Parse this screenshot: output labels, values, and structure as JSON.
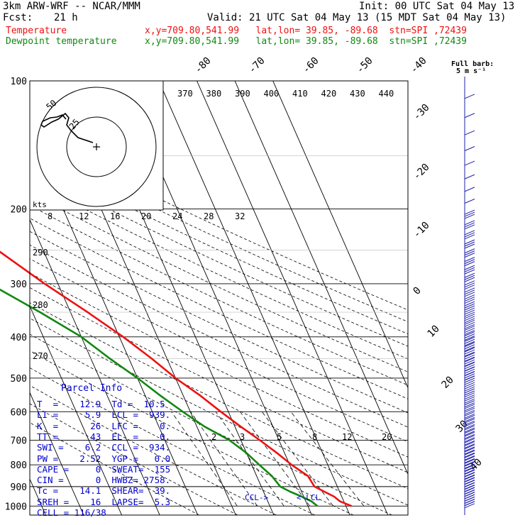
{
  "header": {
    "model": "3km ARW-WRF -- NCAR/MMM",
    "init": "Init: 00 UTC Sat 04 May 13",
    "fcst_label": "Fcst:",
    "fcst_value": "21 h",
    "valid": "Valid: 21 UTC Sat 04 May 13 (15 MDT Sat 04 May 13)",
    "temp_label": "Temperature",
    "temp_info": "x,y=709.80,541.99   lat,lon= 39.85, -89.68  stn=SPI ,72439",
    "dew_label": "Dewpoint temperature",
    "dew_info": "x,y=709.80,541.99   lat,lon= 39.85, -89.68  stn=SPI ,72439"
  },
  "colors": {
    "temperature": "#ee1111",
    "dewpoint": "#118811",
    "text_blue": "#0000cc",
    "wind": "#2222aa"
  },
  "chart_data": {
    "type": "line",
    "title": "",
    "ylabel": "Pressure (hPa)",
    "pressure_ticks": [
      {
        "p": 100,
        "label": "100"
      },
      {
        "p": 200,
        "label": "200"
      },
      {
        "p": 300,
        "label": "300"
      },
      {
        "p": 400,
        "label": "400"
      },
      {
        "p": 500,
        "label": "500"
      },
      {
        "p": 600,
        "label": "600"
      },
      {
        "p": 700,
        "label": "700"
      },
      {
        "p": 800,
        "label": "800"
      },
      {
        "p": 900,
        "label": "900"
      },
      {
        "p": 1000,
        "label": "1000"
      }
    ],
    "isotherm_labels": [
      "-80",
      "-70",
      "-60",
      "-50",
      "-40",
      "-30",
      "-20",
      "-10",
      "0",
      "10",
      "20",
      "30",
      "40"
    ],
    "theta_labels": [
      "370",
      "380",
      "390",
      "400",
      "410",
      "420",
      "430",
      "440"
    ],
    "theta_side_labels": [
      "290",
      "280",
      "270"
    ],
    "mixing_ratio_labels": [
      "2",
      "3",
      "5",
      "8",
      "12",
      "20"
    ],
    "hodo_speed_labels": [
      "8",
      "12",
      "16",
      "20",
      "24",
      "28",
      "32"
    ],
    "hodo_units": "kts",
    "hodo_ring_labels": [
      "50",
      "25"
    ],
    "barb_legend": [
      "Full barb:",
      "5 m s⁻¹"
    ],
    "ccl_label": "CCL->",
    "lcl_label": "<-LCL",
    "series": [
      {
        "name": "Temperature",
        "points": [
          [
            1000,
            21.5
          ],
          [
            975,
            19.0
          ],
          [
            950,
            18.0
          ],
          [
            925,
            16.0
          ],
          [
            900,
            14.0
          ],
          [
            850,
            13.5
          ],
          [
            800,
            10.5
          ],
          [
            750,
            8.0
          ],
          [
            700,
            5.0
          ],
          [
            650,
            1.5
          ],
          [
            600,
            -2.0
          ],
          [
            550,
            -5.5
          ],
          [
            500,
            -10.0
          ],
          [
            450,
            -14.0
          ],
          [
            400,
            -19.0
          ],
          [
            350,
            -25.5
          ],
          [
            300,
            -33.5
          ],
          [
            250,
            -42.0
          ],
          [
            225,
            -48.5
          ],
          [
            200,
            -54.0
          ],
          [
            175,
            -59.0
          ],
          [
            150,
            -59.5
          ],
          [
            125,
            -61.5
          ],
          [
            100,
            -64.0
          ]
        ]
      },
      {
        "name": "Dewpoint temperature",
        "points": [
          [
            1000,
            12.5
          ],
          [
            975,
            11.5
          ],
          [
            950,
            9.5
          ],
          [
            925,
            7.0
          ],
          [
            900,
            5.0
          ],
          [
            850,
            4.0
          ],
          [
            800,
            2.0
          ],
          [
            750,
            0.0
          ],
          [
            700,
            -3.0
          ],
          [
            650,
            -8.0
          ],
          [
            600,
            -12.0
          ],
          [
            550,
            -16.0
          ],
          [
            500,
            -20.0
          ],
          [
            450,
            -25.0
          ],
          [
            400,
            -30.0
          ],
          [
            350,
            -38.0
          ],
          [
            300,
            -48.0
          ],
          [
            250,
            -58.0
          ],
          [
            225,
            -64.0
          ],
          [
            200,
            -69.0
          ],
          [
            175,
            -75.0
          ],
          [
            150,
            -80.0
          ],
          [
            125,
            -83.0
          ],
          [
            100,
            -85.0
          ]
        ]
      }
    ],
    "ylim": [
      1000,
      100
    ],
    "grid": true
  },
  "parcel": {
    "title": "Parcel Info",
    "rows": [
      "T  =    12.9  Td =  10.5",
      "LI =     5.9  LCL =  939.",
      "K  =      26  LFC =    0.",
      "TT =      43  EL  =    0.",
      "SWI =    6.2  CCL =  934.",
      "PW =    2.52  YGP =   0.0",
      "CAPE =     0  SWEAT=  155",
      "CIN =      0  HWBZ= 2758.",
      "Tc =    14.1  SHEAR=  39.",
      "SREH =    16  LAPSE=  5.3",
      "CELL = 116/38"
    ]
  }
}
